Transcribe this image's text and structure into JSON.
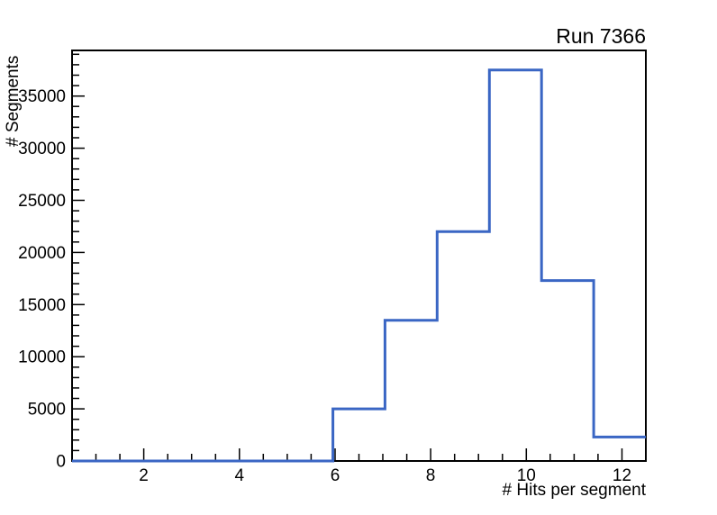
{
  "title": "Run 7366",
  "chart_data": {
    "type": "histogram-step",
    "title": "Run 7366",
    "xlabel": "# Hits per segment",
    "ylabel": "# Segments",
    "xlim": [
      0.5,
      12.5
    ],
    "ylim": [
      0,
      39375
    ],
    "bin_edges": [
      0.5,
      1.591,
      2.682,
      3.773,
      4.864,
      5.955,
      7.045,
      8.136,
      9.227,
      10.318,
      11.409,
      12.5
    ],
    "counts": [
      0,
      0,
      0,
      0,
      0,
      5000,
      13500,
      22000,
      37500,
      17300,
      2300
    ],
    "x_major_ticks": [
      2,
      4,
      6,
      8,
      10,
      12
    ],
    "x_minor_step": 0.5,
    "y_major_ticks": [
      0,
      5000,
      10000,
      15000,
      20000,
      25000,
      30000,
      35000
    ],
    "y_minor_step": 1000,
    "grid": false,
    "legend": false,
    "line_color": "#3A66C4",
    "axis_color": "#000000",
    "background": "#FFFFFF"
  }
}
